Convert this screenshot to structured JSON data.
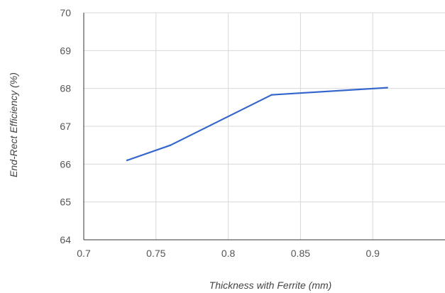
{
  "chart_data": {
    "type": "line",
    "title": "",
    "xlabel": "Thickness with Ferrite (mm)",
    "ylabel": "End-Rect Efficiency (%)",
    "xlim": [
      0.7,
      0.95
    ],
    "ylim": [
      64,
      70
    ],
    "x_ticks": [
      0.7,
      0.75,
      0.8,
      0.85,
      0.9
    ],
    "x_tick_labels": [
      "0.7",
      "0.75",
      "0.8",
      "0.85",
      "0.9"
    ],
    "y_ticks": [
      64,
      65,
      66,
      67,
      68,
      69,
      70
    ],
    "y_tick_labels": [
      "64",
      "65",
      "66",
      "67",
      "68",
      "69",
      "70"
    ],
    "grid": true,
    "series": [
      {
        "x": [
          0.73,
          0.76,
          0.83,
          0.91
        ],
        "y": [
          66.1,
          66.5,
          67.83,
          68.02
        ],
        "color": "#3366cc"
      }
    ]
  }
}
